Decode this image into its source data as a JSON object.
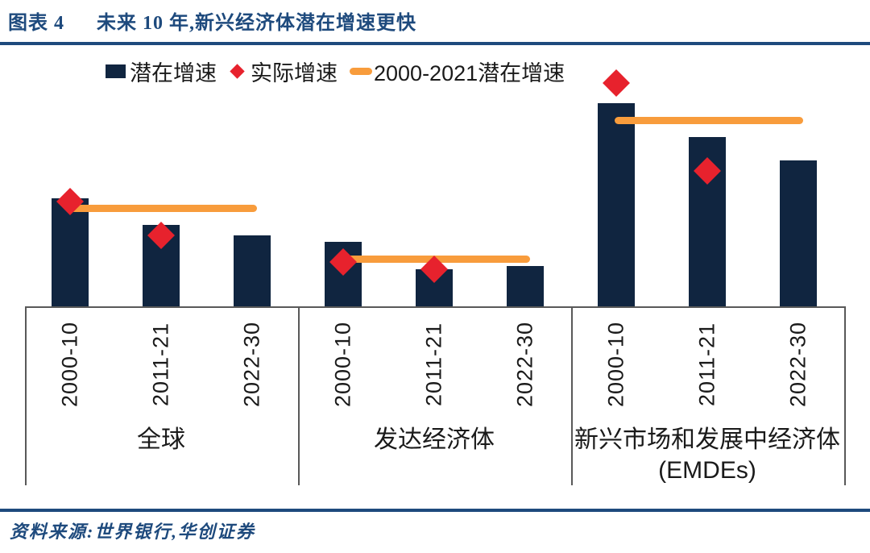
{
  "header": {
    "tag": "图表 4",
    "title": "未来 10 年,新兴经济体潜在增速更快"
  },
  "legend": {
    "bars": "潜在增速",
    "diamonds": "实际增速",
    "line": "2000-2021潜在增速"
  },
  "footer": {
    "source": "资料来源:世界银行,华创证券"
  },
  "colors": {
    "heading_blue": "#1E4A7D",
    "rule_blue": "#1E4A7D",
    "bar_navy": "#102540",
    "diamond_red": "#E7222D",
    "line_orange": "#F89C3C",
    "box_line_gray": "#595959",
    "label_text": "#1A1A1A"
  },
  "chart_data": {
    "type": "bar",
    "title": "未来 10 年,新兴经济体潜在增速更快",
    "categories": [
      "2000-10",
      "2011-21",
      "2022-30"
    ],
    "unit": "%",
    "y_axis_visible": false,
    "ylim": [
      0,
      7
    ],
    "grid": false,
    "legend_position": "top",
    "series_names": {
      "bars": "潜在增速",
      "diamonds": "实际增速",
      "line": "2000-2021潜在增速"
    },
    "groups": [
      {
        "label": "全球",
        "sublabel": "",
        "bars_potential": [
          3.2,
          2.4,
          2.1
        ],
        "diamonds_actual": [
          3.1,
          2.1,
          null
        ],
        "line_2000_2021_potential": 2.9
      },
      {
        "label": "发达经济体",
        "sublabel": "",
        "bars_potential": [
          1.9,
          1.1,
          1.2
        ],
        "diamonds_actual": [
          1.3,
          1.1,
          null
        ],
        "line_2000_2021_potential": 1.4
      },
      {
        "label": "新兴市场和发展中经济体",
        "sublabel": "(EMDEs)",
        "bars_potential": [
          6.0,
          5.0,
          4.3
        ],
        "diamonds_actual": [
          6.6,
          4.0,
          null
        ],
        "line_2000_2021_potential": 5.5
      }
    ]
  }
}
